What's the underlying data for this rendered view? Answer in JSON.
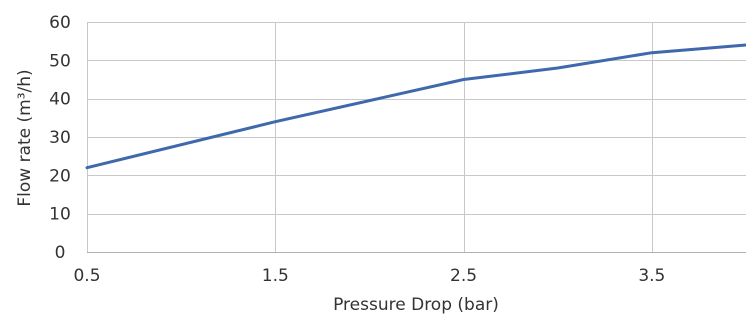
{
  "chart_data": {
    "type": "line",
    "xlabel": "Pressure Drop (bar)",
    "ylabel": "Flow rate (m³/h)",
    "xlim": [
      0.5,
      4
    ],
    "ylim": [
      0,
      60
    ],
    "x_ticks": [
      "0.5",
      "1.5",
      "2.5",
      "3.5"
    ],
    "x_tick_values": [
      0.5,
      1.5,
      2.5,
      3.5
    ],
    "x_gridlines": [
      0.5,
      1.5,
      2.5,
      3.5,
      4
    ],
    "y_ticks": [
      "0",
      "10",
      "20",
      "30",
      "40",
      "50",
      "60"
    ],
    "y_tick_values": [
      0,
      10,
      20,
      30,
      40,
      50,
      60
    ],
    "grid": true,
    "series": [
      {
        "color": "#3f68ad",
        "x": [
          0.5,
          1.5,
          2.5,
          3.0,
          3.5,
          4.0
        ],
        "y": [
          22,
          34,
          45,
          48,
          52,
          54
        ]
      }
    ]
  }
}
